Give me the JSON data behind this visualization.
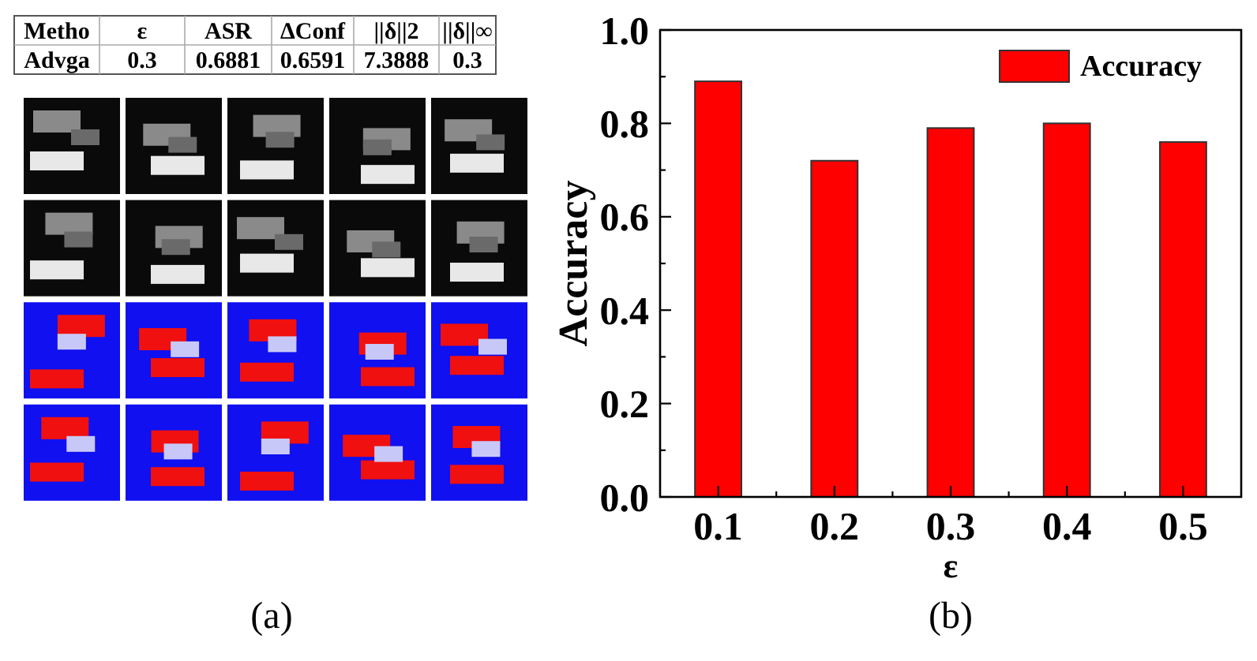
{
  "chart_data": [
    {
      "type": "other",
      "categories": [
        "Metho",
        "ε",
        "ASR",
        "ΔConf",
        "||δ||2",
        "||δ||∞"
      ],
      "cell_labels": [
        [
          "Advga",
          "0.3",
          "0.6881",
          "0.6591",
          "7.3888",
          "0.3"
        ]
      ],
      "annotations": [
        "(a)"
      ]
    },
    {
      "type": "bar",
      "categories": [
        "0.1",
        "0.2",
        "0.3",
        "0.4",
        "0.5"
      ],
      "series": [
        {
          "name": "Accuracy",
          "color": "#ff0000",
          "values": [
            0.89,
            0.72,
            0.79,
            0.8,
            0.76
          ]
        }
      ],
      "xlabel": "ε",
      "ylabel": "Accuracy",
      "ylim": [
        0,
        1
      ],
      "yticks": [
        {
          "value": 0,
          "label": "0.0"
        },
        {
          "value": 0.1,
          "label": null
        },
        0.2,
        {
          "value": 0.3,
          "label": null
        },
        0.4,
        {
          "value": 0.5,
          "label": null
        },
        0.6,
        {
          "value": 0.7,
          "label": null
        },
        0.8,
        {
          "value": 0.9,
          "label": null
        },
        {
          "value": 1,
          "label": "1.0"
        }
      ],
      "legend": "top right",
      "annotations": [
        "(b)"
      ]
    }
  ]
}
